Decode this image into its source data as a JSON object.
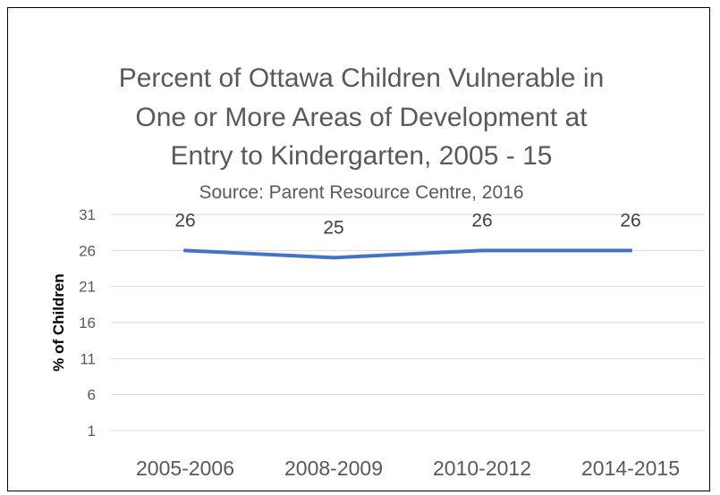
{
  "chart_data": {
    "type": "line",
    "title_lines": [
      "Percent of Ottawa Children Vulnerable in",
      "One or More Areas of Development at",
      "Entry to Kindergarten, 2005 - 15"
    ],
    "subtitle": "Source:  Parent Resource Centre, 2016",
    "xlabel": "",
    "ylabel": "% of Children",
    "categories": [
      "2005-2006",
      "2008-2009",
      "2010-2012",
      "2014-2015"
    ],
    "series": [
      {
        "values": [
          26,
          25,
          26,
          26
        ]
      }
    ],
    "data_labels": [
      "26",
      "25",
      "26",
      "26"
    ],
    "yticks": [
      1,
      6,
      11,
      16,
      21,
      26,
      31
    ],
    "ylim": [
      1,
      31
    ],
    "grid": true,
    "legend": "none",
    "colors": {
      "line": "#4472c4",
      "grid": "#d9d9d9",
      "text": "#595959"
    }
  }
}
